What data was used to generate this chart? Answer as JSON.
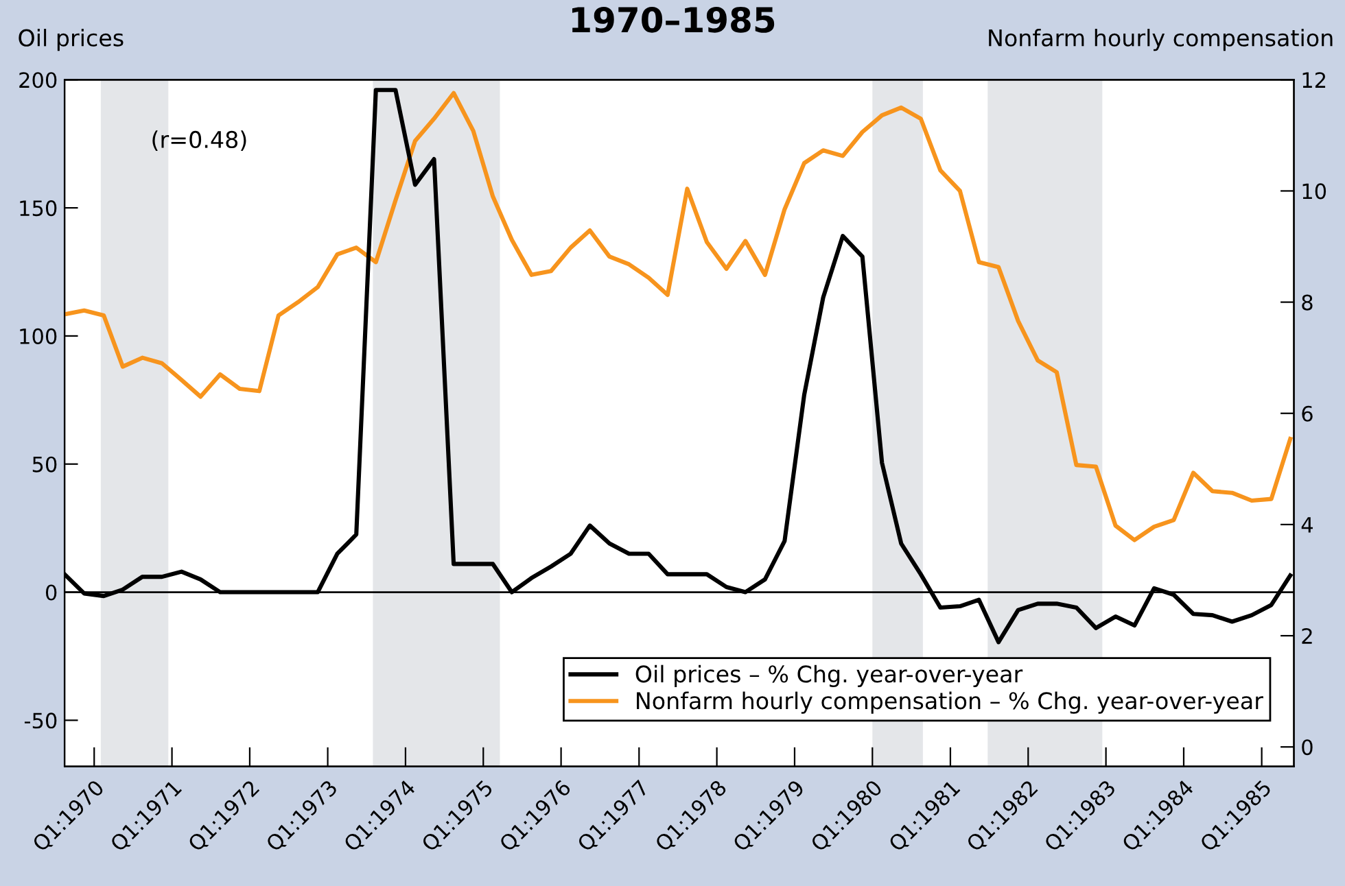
{
  "chart_data": {
    "type": "line",
    "title": "1970–1985",
    "ylabel": "Oil prices",
    "y2label": "Nonfarm hourly compensation",
    "annotations": [
      "(r=0.48)"
    ],
    "x": [
      "1969-08-15",
      "1969-11-15",
      "1970-02-15",
      "1970-05-15",
      "1970-08-15",
      "1970-11-15",
      "1971-02-15",
      "1971-05-15",
      "1971-08-15",
      "1971-11-15",
      "1972-02-15",
      "1972-05-15",
      "1972-08-15",
      "1972-11-15",
      "1973-02-15",
      "1973-05-15",
      "1973-08-15",
      "1973-11-15",
      "1974-02-15",
      "1974-05-15",
      "1974-08-15",
      "1974-11-15",
      "1975-02-15",
      "1975-05-15",
      "1975-08-15",
      "1975-11-15",
      "1976-02-15",
      "1976-05-15",
      "1976-08-15",
      "1976-11-15",
      "1977-02-15",
      "1977-05-15",
      "1977-08-15",
      "1977-11-15",
      "1978-02-15",
      "1978-05-15",
      "1978-08-15",
      "1978-11-15",
      "1979-02-15",
      "1979-05-15",
      "1979-08-15",
      "1979-11-15",
      "1980-02-15",
      "1980-05-15",
      "1980-08-15",
      "1980-11-15",
      "1981-02-15",
      "1981-05-15",
      "1981-08-15",
      "1981-11-15",
      "1982-02-15",
      "1982-05-15",
      "1982-08-15",
      "1982-11-15",
      "1983-02-15",
      "1983-05-15",
      "1983-08-15",
      "1983-11-15",
      "1984-02-15",
      "1984-05-15",
      "1984-08-15",
      "1984-11-15",
      "1985-02-15",
      "1985-05-15"
    ],
    "series": [
      {
        "name": "Oil prices – % Chg. year-over-year",
        "color": "#000000",
        "values": [
          7,
          -0.5,
          -1.5,
          1,
          6,
          6,
          8,
          5,
          0,
          0,
          0,
          0,
          0,
          0,
          15,
          22.5,
          196,
          196,
          159,
          169,
          11,
          11,
          11,
          0,
          5.5,
          10,
          15,
          26,
          19,
          15,
          15,
          7,
          7,
          7,
          2,
          0,
          5,
          20,
          77,
          115,
          139,
          131,
          50.5,
          19,
          7,
          -6,
          -5.5,
          -3,
          -19.5,
          -7,
          -4.5,
          -4.5,
          -6,
          -14,
          -9.5,
          -13,
          1.5,
          -1,
          -8.5,
          -9,
          -11.5,
          -9,
          -5,
          6.5
        ]
      },
      {
        "name": "Nonfarm hourly compensation – % Chg. year-over-year",
        "color": "#f7941d",
        "axis": "y2",
        "values": [
          7.78,
          7.85,
          7.76,
          6.84,
          7.0,
          6.9,
          6.6,
          6.3,
          6.7,
          6.44,
          6.4,
          7.76,
          8.0,
          8.27,
          8.86,
          8.98,
          8.72,
          9.83,
          10.9,
          11.3,
          11.76,
          11.08,
          9.9,
          9.12,
          8.49,
          8.56,
          8.98,
          9.29,
          8.82,
          8.68,
          8.44,
          8.13,
          10.04,
          9.08,
          8.6,
          9.1,
          8.49,
          9.67,
          10.5,
          10.73,
          10.63,
          11.06,
          11.36,
          11.5,
          11.3,
          10.37,
          10.0,
          8.72,
          8.63,
          7.66,
          6.95,
          6.74,
          5.07,
          5.04,
          3.98,
          3.72,
          3.96,
          4.08,
          4.93,
          4.6,
          4.57,
          4.43,
          4.46,
          5.54
        ]
      }
    ],
    "xlim": [
      "1969-08-15",
      "1985-06-01"
    ],
    "xticks": [
      {
        "value": "1970",
        "label": "Q1:1970"
      },
      {
        "value": "1971",
        "label": "Q1:1971"
      },
      {
        "value": "1972",
        "label": "Q1:1972"
      },
      {
        "value": "1973",
        "label": "Q1:1973"
      },
      {
        "value": "1974",
        "label": "Q1:1974"
      },
      {
        "value": "1975",
        "label": "Q1:1975"
      },
      {
        "value": "1976",
        "label": "Q1:1976"
      },
      {
        "value": "1977",
        "label": "Q1:1977"
      },
      {
        "value": "1978",
        "label": "Q1:1978"
      },
      {
        "value": "1979",
        "label": "Q1:1979"
      },
      {
        "value": "1980",
        "label": "Q1:1980"
      },
      {
        "value": "1981",
        "label": "Q1:1981"
      },
      {
        "value": "1982",
        "label": "Q1:1982"
      },
      {
        "value": "1983",
        "label": "Q1:1983"
      },
      {
        "value": "1984",
        "label": "Q1:1984"
      },
      {
        "value": "1985",
        "label": "Q1:1985"
      }
    ],
    "ylim": [
      -68,
      200
    ],
    "yticks": [
      -50,
      0,
      50,
      100,
      150,
      200
    ],
    "y2lim": [
      -0.35,
      12
    ],
    "y2ticks": [
      0,
      2,
      4,
      6,
      8,
      10,
      12
    ],
    "ref_lines": [
      {
        "axis": "y",
        "value": 0,
        "color": "#000000"
      }
    ],
    "bands": [
      {
        "axis": "x",
        "from": "1970-02-01",
        "to": "1970-12-15",
        "color": "#e4e6e9"
      },
      {
        "axis": "x",
        "from": "1973-08-01",
        "to": "1975-03-20",
        "color": "#e4e6e9"
      },
      {
        "axis": "x",
        "from": "1980-01-01",
        "to": "1980-08-25",
        "color": "#e4e6e9"
      },
      {
        "axis": "x",
        "from": "1981-06-25",
        "to": "1982-12-15",
        "color": "#e4e6e9"
      }
    ],
    "grid": false,
    "legend": "bottom right",
    "marker": "none",
    "line_style": "solid"
  }
}
